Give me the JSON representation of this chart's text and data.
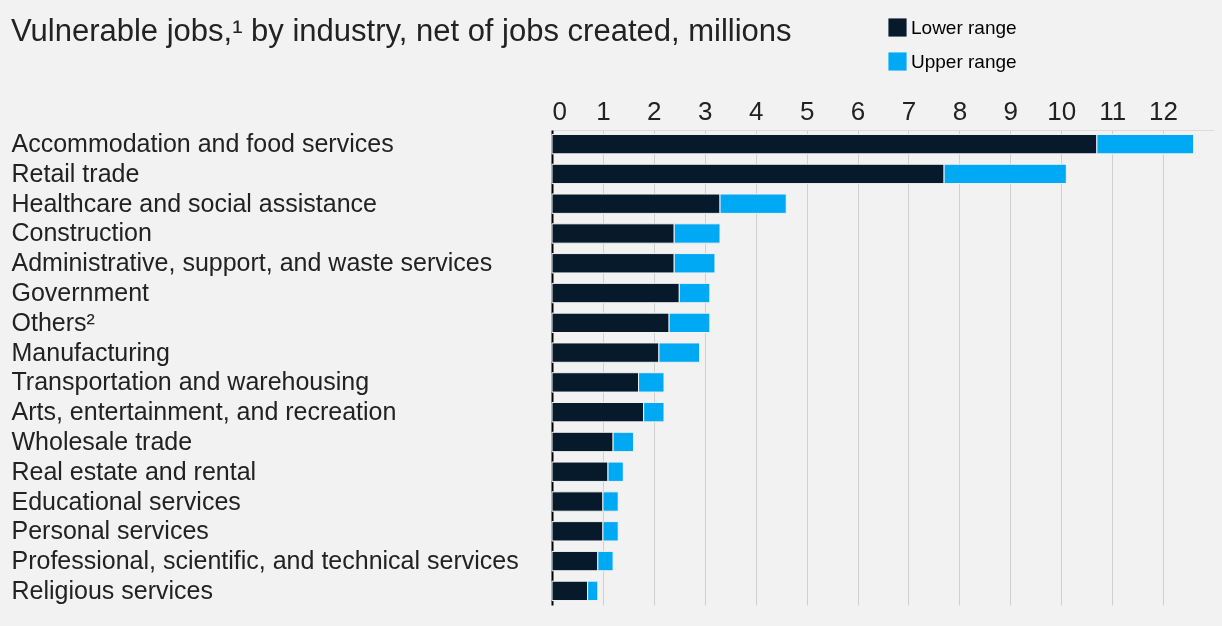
{
  "chart_data": {
    "type": "bar",
    "orientation": "horizontal",
    "stacked": true,
    "title": "Vulnerable jobs,¹ by industry, net of jobs created, millions",
    "categories": [
      "Accommodation and food services",
      "Retail trade",
      "Healthcare and social assistance",
      "Construction",
      "Administrative, support, and waste services",
      "Government",
      "Others²",
      "Manufacturing",
      "Transportation and warehousing",
      "Arts, entertainment, and recreation",
      "Wholesale trade",
      "Real estate and rental",
      "Educational services",
      "Personal services",
      "Professional, scientific, and technical services",
      "Religious services"
    ],
    "series": [
      {
        "name": "Lower range",
        "color": "#061a2b",
        "values": [
          10.7,
          7.7,
          3.3,
          2.4,
          2.4,
          2.5,
          2.3,
          2.1,
          1.7,
          1.8,
          1.2,
          1.1,
          1.0,
          1.0,
          0.9,
          0.7
        ]
      },
      {
        "name": "Upper range",
        "color": "#00a9f4",
        "values": [
          1.9,
          2.4,
          1.3,
          0.9,
          0.8,
          0.6,
          0.8,
          0.8,
          0.5,
          0.4,
          0.4,
          0.3,
          0.3,
          0.3,
          0.3,
          0.2
        ]
      }
    ],
    "xlim": [
      0,
      13
    ],
    "xticks": [
      0,
      1,
      2,
      3,
      4,
      5,
      6,
      7,
      8,
      9,
      10,
      11,
      12
    ],
    "grid": "x",
    "legend": "top right"
  }
}
